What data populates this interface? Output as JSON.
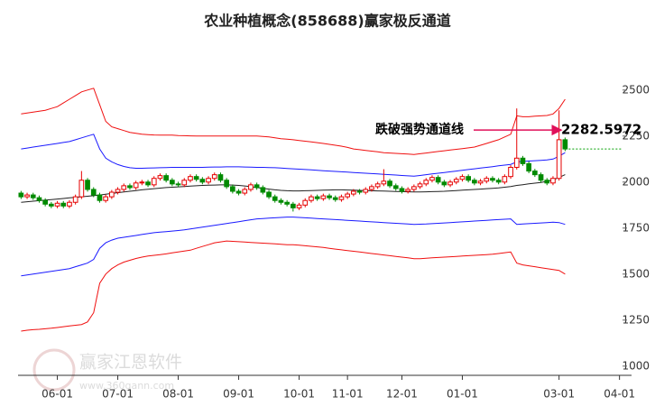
{
  "chart_data": {
    "type": "candlestick",
    "title": "农业种植概念(858688)赢家极反通道",
    "categories": [
      null,
      null,
      null,
      null,
      null,
      null,
      "06-01",
      null,
      null,
      null,
      null,
      null,
      null,
      null,
      null,
      null,
      "07-01",
      null,
      null,
      null,
      null,
      null,
      null,
      null,
      null,
      null,
      "08-01",
      null,
      null,
      null,
      null,
      null,
      null,
      null,
      null,
      null,
      "09-01",
      null,
      null,
      null,
      null,
      null,
      null,
      null,
      null,
      null,
      "10-01",
      null,
      null,
      null,
      null,
      null,
      null,
      null,
      "11-01",
      null,
      null,
      null,
      null,
      null,
      null,
      null,
      null,
      "12-01",
      null,
      null,
      null,
      null,
      null,
      null,
      null,
      null,
      null,
      "01-01",
      null,
      null,
      null,
      null,
      null,
      null,
      null,
      null,
      null,
      null,
      null,
      null,
      null,
      null,
      null,
      "03-01",
      null,
      null,
      null,
      null,
      null,
      null,
      null,
      null,
      null,
      "04-01"
    ],
    "candles": {
      "open": [
        1940,
        1920,
        1930,
        1915,
        1900,
        1880,
        1870,
        1885,
        1870,
        1890,
        1920,
        2010,
        1960,
        1930,
        1900,
        1920,
        1945,
        1960,
        1980,
        1970,
        1995,
        2000,
        1985,
        2020,
        2035,
        2010,
        1990,
        1985,
        2010,
        2030,
        2015,
        2000,
        2020,
        2040,
        2010,
        1975,
        1950,
        1940,
        1960,
        1985,
        1970,
        1945,
        1920,
        1900,
        1890,
        1880,
        1860,
        1875,
        1900,
        1920,
        1910,
        1925,
        1915,
        1905,
        1920,
        1935,
        1950,
        1945,
        1960,
        1975,
        1990,
        2005,
        1980,
        1965,
        1950,
        1960,
        1975,
        1990,
        2010,
        2025,
        2000,
        1985,
        2000,
        2015,
        2030,
        2010,
        1995,
        2005,
        2020,
        2010,
        2000,
        2030,
        2080,
        2130,
        2100,
        2060,
        2040,
        2010,
        1995,
        2020,
        2230,
        null,
        null,
        null,
        null,
        null,
        null,
        null,
        null,
        null
      ],
      "high": [
        1952,
        1942,
        1942,
        1927,
        1912,
        1892,
        1897,
        1897,
        1902,
        1932,
        2060,
        2022,
        1972,
        1942,
        1932,
        1957,
        1972,
        1992,
        1992,
        2007,
        2012,
        2012,
        2032,
        2047,
        2047,
        2022,
        2002,
        2022,
        2042,
        2042,
        2027,
        2032,
        2052,
        2052,
        2022,
        1987,
        1962,
        1972,
        1997,
        1997,
        1982,
        1957,
        1932,
        1912,
        1902,
        1892,
        1887,
        1912,
        1932,
        1932,
        1937,
        1937,
        1927,
        1932,
        1947,
        1962,
        1962,
        1972,
        1987,
        2002,
        2070,
        2017,
        1992,
        1977,
        1972,
        1987,
        2002,
        2022,
        2037,
        2037,
        2012,
        2012,
        2027,
        2042,
        2042,
        2022,
        2017,
        2032,
        2032,
        2022,
        2042,
        2092,
        2400,
        2142,
        2112,
        2072,
        2052,
        2022,
        2032,
        2390,
        2242,
        null,
        null,
        null,
        null,
        null,
        null,
        null,
        null,
        null
      ],
      "low": [
        1908,
        1908,
        1903,
        1888,
        1868,
        1858,
        1858,
        1858,
        1858,
        1878,
        1908,
        1948,
        1918,
        1888,
        1888,
        1908,
        1933,
        1948,
        1958,
        1958,
        1983,
        1973,
        1973,
        2008,
        1998,
        1978,
        1973,
        1973,
        1998,
        2003,
        1988,
        1988,
        2008,
        1998,
        1963,
        1938,
        1928,
        1928,
        1948,
        1958,
        1933,
        1908,
        1888,
        1878,
        1868,
        1840,
        1848,
        1863,
        1888,
        1898,
        1898,
        1903,
        1893,
        1893,
        1908,
        1923,
        1933,
        1933,
        1948,
        1963,
        1978,
        1968,
        1953,
        1938,
        1938,
        1948,
        1963,
        1978,
        1998,
        1988,
        1973,
        1973,
        1988,
        2003,
        1998,
        1983,
        1983,
        1993,
        1998,
        1988,
        1988,
        2018,
        2068,
        2088,
        2048,
        2028,
        1998,
        1983,
        1983,
        2008,
        2168,
        null,
        null,
        null,
        null,
        null,
        null,
        null,
        null,
        null
      ],
      "close": [
        1920,
        1930,
        1915,
        1900,
        1880,
        1870,
        1885,
        1870,
        1890,
        1920,
        2010,
        1960,
        1930,
        1900,
        1920,
        1945,
        1960,
        1980,
        1970,
        1995,
        2000,
        1985,
        2020,
        2035,
        2010,
        1990,
        1985,
        2010,
        2030,
        2015,
        2000,
        2020,
        2040,
        2010,
        1975,
        1950,
        1940,
        1960,
        1985,
        1970,
        1945,
        1920,
        1900,
        1890,
        1880,
        1860,
        1875,
        1900,
        1920,
        1910,
        1925,
        1915,
        1905,
        1920,
        1935,
        1950,
        1945,
        1960,
        1975,
        1990,
        2005,
        1980,
        1965,
        1950,
        1960,
        1975,
        1990,
        2010,
        2025,
        2000,
        1985,
        2000,
        2015,
        2030,
        2010,
        1995,
        2005,
        2020,
        2010,
        2000,
        2030,
        2080,
        2130,
        2100,
        2060,
        2040,
        2010,
        1995,
        2020,
        2230,
        2180,
        null,
        null,
        null,
        null,
        null,
        null,
        null,
        null,
        null
      ]
    },
    "up_color": "#e60000",
    "down_color": "#008a00",
    "last_price_color": "#00a000",
    "series": [
      {
        "color": "#f01010",
        "values": [
          2370,
          2375,
          2380,
          2385,
          2390,
          2400,
          2410,
          2430,
          2450,
          2470,
          2490,
          2500,
          2510,
          2420,
          2330,
          2300,
          2290,
          2280,
          2270,
          2265,
          2260,
          2258,
          2256,
          2255,
          2255,
          2255,
          2253,
          2252,
          2251,
          2250,
          2250,
          2250,
          2250,
          2250,
          2250,
          2250,
          2250,
          2250,
          2250,
          2250,
          2248,
          2245,
          2240,
          2236,
          2233,
          2230,
          2226,
          2222,
          2218,
          2214,
          2210,
          2205,
          2200,
          2195,
          2188,
          2180,
          2176,
          2172,
          2168,
          2164,
          2160,
          2158,
          2156,
          2154,
          2152,
          2150,
          2154,
          2158,
          2162,
          2166,
          2170,
          2174,
          2178,
          2182,
          2186,
          2190,
          2200,
          2210,
          2220,
          2230,
          2245,
          2260,
          2360,
          2355,
          2355,
          2358,
          2360,
          2362,
          2370,
          2400,
          2450,
          null,
          null,
          null,
          null,
          null,
          null,
          null,
          null,
          null
        ]
      },
      {
        "color": "#1a1aff",
        "values": [
          2180,
          2185,
          2190,
          2195,
          2200,
          2205,
          2210,
          2215,
          2220,
          2230,
          2240,
          2250,
          2260,
          2180,
          2130,
          2110,
          2095,
          2085,
          2078,
          2075,
          2075,
          2076,
          2077,
          2078,
          2079,
          2080,
          2080,
          2080,
          2080,
          2080,
          2080,
          2081,
          2082,
          2082,
          2083,
          2083,
          2083,
          2082,
          2081,
          2080,
          2080,
          2079,
          2078,
          2076,
          2074,
          2072,
          2070,
          2068,
          2066,
          2064,
          2062,
          2060,
          2058,
          2056,
          2054,
          2052,
          2050,
          2048,
          2046,
          2044,
          2042,
          2040,
          2038,
          2036,
          2034,
          2032,
          2036,
          2040,
          2044,
          2048,
          2052,
          2056,
          2060,
          2064,
          2068,
          2072,
          2076,
          2080,
          2084,
          2088,
          2092,
          2096,
          2110,
          2112,
          2114,
          2116,
          2118,
          2120,
          2125,
          2140,
          2160,
          null,
          null,
          null,
          null,
          null,
          null,
          null,
          null,
          null
        ]
      },
      {
        "color": "#222222",
        "values": [
          1890,
          1893,
          1896,
          1899,
          1902,
          1905,
          1908,
          1911,
          1914,
          1917,
          1920,
          1923,
          1926,
          1930,
          1934,
          1938,
          1942,
          1946,
          1950,
          1954,
          1958,
          1961,
          1964,
          1967,
          1970,
          1972,
          1974,
          1976,
          1978,
          1980,
          1982,
          1983,
          1984,
          1985,
          1985,
          1984,
          1982,
          1979,
          1975,
          1970,
          1966,
          1962,
          1958,
          1955,
          1953,
          1952,
          1952,
          1953,
          1954,
          1955,
          1956,
          1957,
          1958,
          1958,
          1957,
          1956,
          1955,
          1954,
          1953,
          1952,
          1951,
          1950,
          1949,
          1948,
          1947,
          1946,
          1946,
          1947,
          1948,
          1949,
          1950,
          1952,
          1954,
          1956,
          1958,
          1960,
          1962,
          1964,
          1966,
          1968,
          1972,
          1976,
          1982,
          1986,
          1990,
          1994,
          1998,
          2004,
          2012,
          2025,
          2040,
          null,
          null,
          null,
          null,
          null,
          null,
          null,
          null,
          null
        ]
      },
      {
        "color": "#1a1aff",
        "values": [
          1490,
          1495,
          1500,
          1505,
          1510,
          1515,
          1520,
          1525,
          1530,
          1540,
          1550,
          1560,
          1580,
          1640,
          1670,
          1685,
          1695,
          1700,
          1705,
          1710,
          1715,
          1720,
          1725,
          1728,
          1731,
          1734,
          1737,
          1740,
          1745,
          1750,
          1755,
          1760,
          1765,
          1770,
          1775,
          1780,
          1785,
          1790,
          1795,
          1800,
          1802,
          1804,
          1806,
          1808,
          1810,
          1810,
          1808,
          1806,
          1804,
          1802,
          1800,
          1798,
          1796,
          1794,
          1792,
          1790,
          1788,
          1786,
          1784,
          1782,
          1780,
          1778,
          1776,
          1774,
          1772,
          1770,
          1771,
          1772,
          1774,
          1776,
          1778,
          1780,
          1782,
          1784,
          1786,
          1788,
          1790,
          1792,
          1794,
          1796,
          1798,
          1800,
          1770,
          1772,
          1774,
          1776,
          1778,
          1780,
          1782,
          1780,
          1770,
          null,
          null,
          null,
          null,
          null,
          null,
          null,
          null,
          null
        ]
      },
      {
        "color": "#f01010",
        "values": [
          1190,
          1195,
          1198,
          1200,
          1203,
          1206,
          1210,
          1214,
          1218,
          1222,
          1226,
          1240,
          1290,
          1450,
          1500,
          1530,
          1550,
          1565,
          1575,
          1585,
          1592,
          1598,
          1602,
          1606,
          1610,
          1615,
          1620,
          1625,
          1630,
          1640,
          1650,
          1660,
          1670,
          1675,
          1680,
          1678,
          1676,
          1674,
          1672,
          1670,
          1668,
          1666,
          1664,
          1662,
          1660,
          1660,
          1657,
          1654,
          1651,
          1648,
          1645,
          1640,
          1636,
          1632,
          1628,
          1624,
          1620,
          1616,
          1612,
          1608,
          1604,
          1600,
          1596,
          1592,
          1588,
          1584,
          1584,
          1586,
          1588,
          1590,
          1592,
          1594,
          1596,
          1598,
          1600,
          1602,
          1604,
          1606,
          1608,
          1612,
          1616,
          1620,
          1560,
          1550,
          1545,
          1540,
          1535,
          1530,
          1525,
          1520,
          1500,
          null,
          null,
          null,
          null,
          null,
          null,
          null,
          null,
          null
        ]
      }
    ],
    "ylim": [
      950,
      2700
    ],
    "yticks": [
      1000,
      1250,
      1500,
      1750,
      2000,
      2250,
      2500
    ],
    "annotation": {
      "text": "跌破强势通道线",
      "value": 2282.5972,
      "color": "#e0105a"
    },
    "watermark": {
      "text": "赢家江恩软件",
      "url": "www.360gann.com"
    }
  }
}
